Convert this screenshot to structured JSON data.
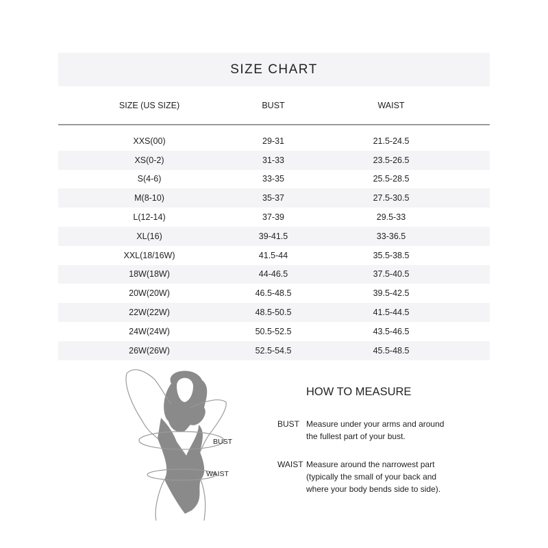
{
  "title": "SIZE CHART",
  "columns": [
    "SIZE (US SIZE)",
    "BUST",
    "WAIST"
  ],
  "rows": [
    [
      "XXS(00)",
      "29-31",
      "21.5-24.5"
    ],
    [
      "XS(0-2)",
      "31-33",
      "23.5-26.5"
    ],
    [
      "S(4-6)",
      "33-35",
      "25.5-28.5"
    ],
    [
      "M(8-10)",
      "35-37",
      "27.5-30.5"
    ],
    [
      "L(12-14)",
      "37-39",
      "29.5-33"
    ],
    [
      "XL(16)",
      "39-41.5",
      "33-36.5"
    ],
    [
      "XXL(18/16W)",
      "41.5-44",
      "35.5-38.5"
    ],
    [
      "18W(18W)",
      "44-46.5",
      "37.5-40.5"
    ],
    [
      "20W(20W)",
      "46.5-48.5",
      "39.5-42.5"
    ],
    [
      "22W(22W)",
      "48.5-50.5",
      "41.5-44.5"
    ],
    [
      "24W(24W)",
      "50.5-52.5",
      "43.5-46.5"
    ],
    [
      "26W(26W)",
      "52.5-54.5",
      "45.5-48.5"
    ]
  ],
  "figure": {
    "bust_label": "BUST",
    "waist_label": "WAIST"
  },
  "how_to_measure": {
    "title": "HOW TO MEASURE",
    "items": [
      {
        "term": "BUST",
        "lines": [
          "Measure under your arms and around",
          "the fullest part of your bust."
        ]
      },
      {
        "term": "WAIST",
        "lines": [
          "Measure around the narrowest part",
          "(typically the small of your back and",
          "where your body bends side to side)."
        ]
      }
    ]
  },
  "colors": {
    "band": "#f4f4f6",
    "rule": "#9a9a9a",
    "figure": "#8a8a8a"
  }
}
